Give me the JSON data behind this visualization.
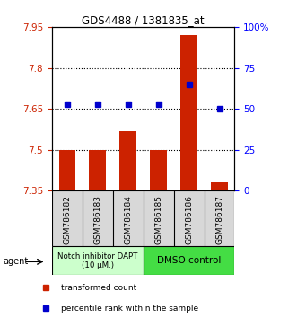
{
  "title": "GDS4488 / 1381835_at",
  "samples": [
    "GSM786182",
    "GSM786183",
    "GSM786184",
    "GSM786185",
    "GSM786186",
    "GSM786187"
  ],
  "bar_values": [
    7.5,
    7.5,
    7.57,
    7.5,
    7.92,
    7.38
  ],
  "bar_bottom": 7.35,
  "percentile_values": [
    53,
    53,
    53,
    53,
    65,
    50
  ],
  "ylim": [
    7.35,
    7.95
  ],
  "yticks": [
    7.35,
    7.5,
    7.65,
    7.8,
    7.95
  ],
  "y2ticks": [
    0,
    25,
    50,
    75,
    100
  ],
  "y2labels": [
    "0",
    "25",
    "50",
    "75",
    "100%"
  ],
  "bar_color": "#cc2200",
  "dot_color": "#0000cc",
  "group1_label": "Notch inhibitor DAPT\n(10 μM.)",
  "group2_label": "DMSO control",
  "group1_color": "#ccffcc",
  "group2_color": "#44dd44",
  "group1_samples": [
    0,
    1,
    2
  ],
  "group2_samples": [
    3,
    4,
    5
  ],
  "legend_bar_label": "transformed count",
  "legend_dot_label": "percentile rank within the sample",
  "agent_label": "agent",
  "dotted_lines": [
    7.5,
    7.65,
    7.8
  ],
  "bar_width": 0.55
}
